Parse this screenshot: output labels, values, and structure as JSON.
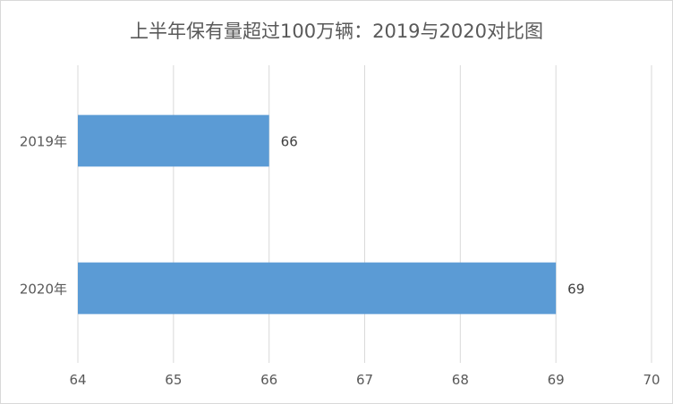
{
  "chart_data": {
    "type": "bar",
    "orientation": "horizontal",
    "title": "上半年保有量超过100万辆：2019与2020对比图",
    "categories": [
      "2019年",
      "2020年"
    ],
    "values": [
      66,
      69
    ],
    "xlim": [
      64,
      70
    ],
    "xticks": [
      64,
      65,
      66,
      67,
      68,
      69,
      70
    ],
    "grid": "vertical",
    "legend": "none",
    "data_labels": true,
    "colors": {
      "bar": "#5B9BD5",
      "grid": "#D9D9D9",
      "text": "#595959"
    }
  }
}
